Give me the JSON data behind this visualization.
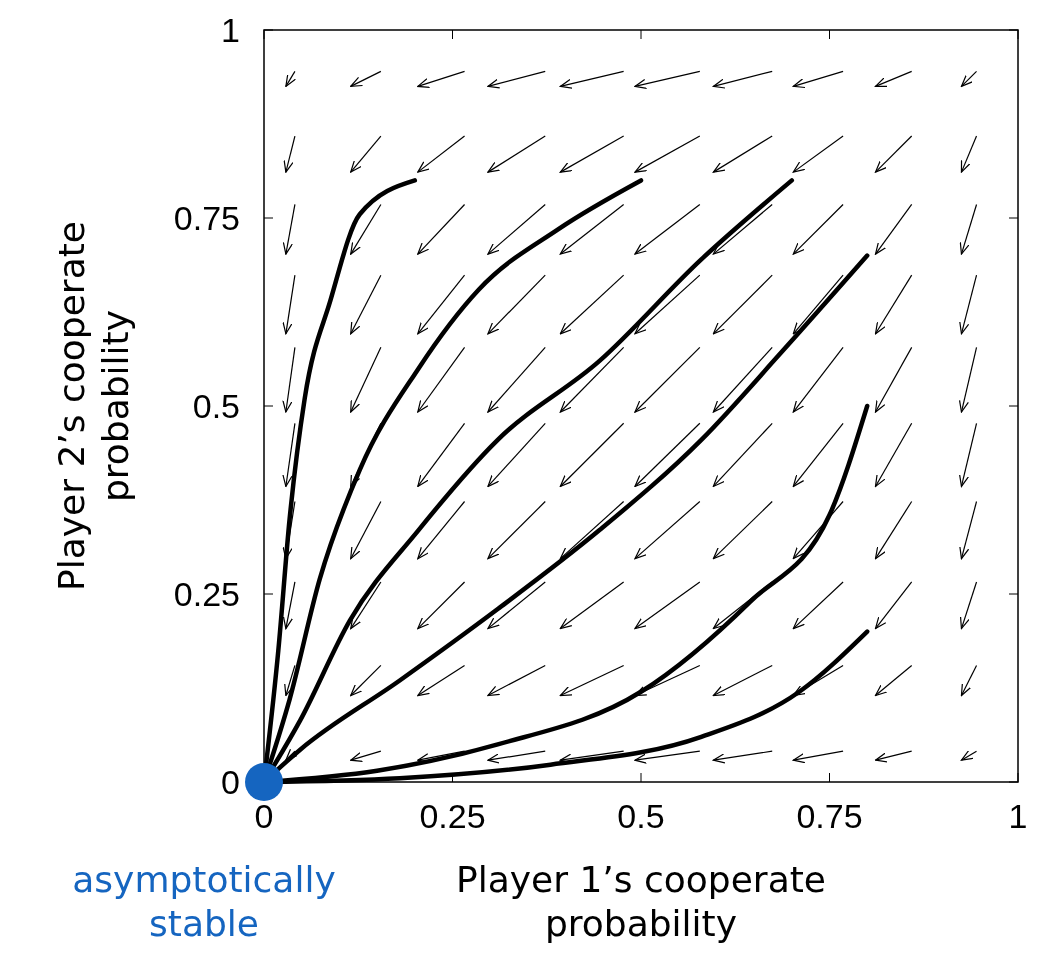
{
  "chart_data": {
    "type": "line",
    "xlabel": "Player 1’s cooperate probability",
    "ylabel": "Player 2’s cooperate probability",
    "xlim": [
      0,
      1
    ],
    "ylim": [
      0,
      1
    ],
    "xticks": [
      0,
      0.25,
      0.5,
      0.75,
      1
    ],
    "yticks": [
      0,
      0.25,
      0.5,
      0.75,
      1
    ],
    "annotations": [
      {
        "text": "asymptotically stable",
        "x": 0,
        "y": 0
      }
    ],
    "series": [
      {
        "color": "#000000",
        "x": [
          0.041,
          0.029
        ],
        "values": [
          0.041,
          0.029
        ]
      },
      {
        "color": "#000000",
        "x": [
          0.155,
          0.115
        ],
        "values": [
          0.041,
          0.029
        ]
      },
      {
        "color": "#000000",
        "x": [
          0.266,
          0.204
        ],
        "values": [
          0.041,
          0.029
        ]
      },
      {
        "color": "#000000",
        "x": [
          0.373,
          0.297
        ],
        "values": [
          0.041,
          0.029
        ]
      },
      {
        "color": "#000000",
        "x": [
          0.477,
          0.393
        ],
        "values": [
          0.041,
          0.029
        ]
      },
      {
        "color": "#000000",
        "x": [
          0.578,
          0.492
        ],
        "values": [
          0.041,
          0.029
        ]
      },
      {
        "color": "#000000",
        "x": [
          0.674,
          0.596
        ],
        "values": [
          0.041,
          0.029
        ]
      },
      {
        "color": "#000000",
        "x": [
          0.768,
          0.702
        ],
        "values": [
          0.041,
          0.029
        ]
      },
      {
        "color": "#000000",
        "x": [
          0.859,
          0.811
        ],
        "values": [
          0.041,
          0.029
        ]
      },
      {
        "color": "#000000",
        "x": [
          0.945,
          0.925
        ],
        "values": [
          0.041,
          0.029
        ]
      },
      {
        "color": "#000000",
        "x": [
          0.041,
          0.029
        ],
        "values": [
          0.155,
          0.115
        ]
      },
      {
        "color": "#000000",
        "x": [
          0.155,
          0.115
        ],
        "values": [
          0.155,
          0.115
        ]
      },
      {
        "color": "#000000",
        "x": [
          0.266,
          0.204
        ],
        "values": [
          0.155,
          0.115
        ]
      },
      {
        "color": "#000000",
        "x": [
          0.373,
          0.297
        ],
        "values": [
          0.155,
          0.115
        ]
      },
      {
        "color": "#000000",
        "x": [
          0.477,
          0.393
        ],
        "values": [
          0.155,
          0.115
        ]
      },
      {
        "color": "#000000",
        "x": [
          0.578,
          0.492
        ],
        "values": [
          0.155,
          0.115
        ]
      },
      {
        "color": "#000000",
        "x": [
          0.674,
          0.596
        ],
        "values": [
          0.155,
          0.115
        ]
      },
      {
        "color": "#000000",
        "x": [
          0.768,
          0.702
        ],
        "values": [
          0.155,
          0.115
        ]
      },
      {
        "color": "#000000",
        "x": [
          0.859,
          0.811
        ],
        "values": [
          0.155,
          0.115
        ]
      },
      {
        "color": "#000000",
        "x": [
          0.945,
          0.925
        ],
        "values": [
          0.155,
          0.115
        ]
      },
      {
        "color": "#000000",
        "x": [
          0.041,
          0.029
        ],
        "values": [
          0.266,
          0.204
        ]
      },
      {
        "color": "#000000",
        "x": [
          0.155,
          0.115
        ],
        "values": [
          0.266,
          0.204
        ]
      },
      {
        "color": "#000000",
        "x": [
          0.266,
          0.204
        ],
        "values": [
          0.266,
          0.204
        ]
      },
      {
        "color": "#000000",
        "x": [
          0.373,
          0.297
        ],
        "values": [
          0.266,
          0.204
        ]
      },
      {
        "color": "#000000",
        "x": [
          0.477,
          0.393
        ],
        "values": [
          0.266,
          0.204
        ]
      },
      {
        "color": "#000000",
        "x": [
          0.578,
          0.492
        ],
        "values": [
          0.266,
          0.204
        ]
      },
      {
        "color": "#000000",
        "x": [
          0.674,
          0.596
        ],
        "values": [
          0.266,
          0.204
        ]
      },
      {
        "color": "#000000",
        "x": [
          0.768,
          0.702
        ],
        "values": [
          0.266,
          0.204
        ]
      },
      {
        "color": "#000000",
        "x": [
          0.859,
          0.811
        ],
        "values": [
          0.266,
          0.204
        ]
      },
      {
        "color": "#000000",
        "x": [
          0.945,
          0.925
        ],
        "values": [
          0.266,
          0.204
        ]
      },
      {
        "color": "#000000",
        "x": [
          0.041,
          0.029
        ],
        "values": [
          0.373,
          0.297
        ]
      },
      {
        "color": "#000000",
        "x": [
          0.155,
          0.115
        ],
        "values": [
          0.373,
          0.297
        ]
      },
      {
        "color": "#000000",
        "x": [
          0.266,
          0.204
        ],
        "values": [
          0.373,
          0.297
        ]
      },
      {
        "color": "#000000",
        "x": [
          0.373,
          0.297
        ],
        "values": [
          0.373,
          0.297
        ]
      },
      {
        "color": "#000000",
        "x": [
          0.477,
          0.393
        ],
        "values": [
          0.373,
          0.297
        ]
      },
      {
        "color": "#000000",
        "x": [
          0.578,
          0.492
        ],
        "values": [
          0.373,
          0.297
        ]
      },
      {
        "color": "#000000",
        "x": [
          0.674,
          0.596
        ],
        "values": [
          0.373,
          0.297
        ]
      },
      {
        "color": "#000000",
        "x": [
          0.768,
          0.702
        ],
        "values": [
          0.373,
          0.297
        ]
      },
      {
        "color": "#000000",
        "x": [
          0.859,
          0.811
        ],
        "values": [
          0.373,
          0.297
        ]
      },
      {
        "color": "#000000",
        "x": [
          0.945,
          0.925
        ],
        "values": [
          0.373,
          0.297
        ]
      },
      {
        "color": "#000000",
        "x": [
          0.041,
          0.029
        ],
        "values": [
          0.477,
          0.393
        ]
      },
      {
        "color": "#000000",
        "x": [
          0.155,
          0.115
        ],
        "values": [
          0.477,
          0.393
        ]
      },
      {
        "color": "#000000",
        "x": [
          0.266,
          0.204
        ],
        "values": [
          0.477,
          0.393
        ]
      },
      {
        "color": "#000000",
        "x": [
          0.373,
          0.297
        ],
        "values": [
          0.477,
          0.393
        ]
      },
      {
        "color": "#000000",
        "x": [
          0.477,
          0.393
        ],
        "values": [
          0.477,
          0.393
        ]
      },
      {
        "color": "#000000",
        "x": [
          0.578,
          0.492
        ],
        "values": [
          0.477,
          0.393
        ]
      },
      {
        "color": "#000000",
        "x": [
          0.674,
          0.596
        ],
        "values": [
          0.477,
          0.393
        ]
      },
      {
        "color": "#000000",
        "x": [
          0.768,
          0.702
        ],
        "values": [
          0.477,
          0.393
        ]
      },
      {
        "color": "#000000",
        "x": [
          0.859,
          0.811
        ],
        "values": [
          0.477,
          0.393
        ]
      },
      {
        "color": "#000000",
        "x": [
          0.945,
          0.925
        ],
        "values": [
          0.477,
          0.393
        ]
      },
      {
        "color": "#000000",
        "x": [
          0.041,
          0.029
        ],
        "values": [
          0.578,
          0.492
        ]
      },
      {
        "color": "#000000",
        "x": [
          0.155,
          0.115
        ],
        "values": [
          0.578,
          0.492
        ]
      },
      {
        "color": "#000000",
        "x": [
          0.266,
          0.204
        ],
        "values": [
          0.578,
          0.492
        ]
      },
      {
        "color": "#000000",
        "x": [
          0.373,
          0.297
        ],
        "values": [
          0.578,
          0.492
        ]
      },
      {
        "color": "#000000",
        "x": [
          0.477,
          0.393
        ],
        "values": [
          0.578,
          0.492
        ]
      },
      {
        "color": "#000000",
        "x": [
          0.578,
          0.492
        ],
        "values": [
          0.578,
          0.492
        ]
      },
      {
        "color": "#000000",
        "x": [
          0.674,
          0.596
        ],
        "values": [
          0.578,
          0.492
        ]
      },
      {
        "color": "#000000",
        "x": [
          0.768,
          0.702
        ],
        "values": [
          0.578,
          0.492
        ]
      },
      {
        "color": "#000000",
        "x": [
          0.859,
          0.811
        ],
        "values": [
          0.578,
          0.492
        ]
      },
      {
        "color": "#000000",
        "x": [
          0.945,
          0.925
        ],
        "values": [
          0.578,
          0.492
        ]
      },
      {
        "color": "#000000",
        "x": [
          0.041,
          0.029
        ],
        "values": [
          0.674,
          0.596
        ]
      },
      {
        "color": "#000000",
        "x": [
          0.155,
          0.115
        ],
        "values": [
          0.674,
          0.596
        ]
      },
      {
        "color": "#000000",
        "x": [
          0.266,
          0.204
        ],
        "values": [
          0.674,
          0.596
        ]
      },
      {
        "color": "#000000",
        "x": [
          0.373,
          0.297
        ],
        "values": [
          0.674,
          0.596
        ]
      },
      {
        "color": "#000000",
        "x": [
          0.477,
          0.393
        ],
        "values": [
          0.674,
          0.596
        ]
      },
      {
        "color": "#000000",
        "x": [
          0.578,
          0.492
        ],
        "values": [
          0.674,
          0.596
        ]
      },
      {
        "color": "#000000",
        "x": [
          0.674,
          0.596
        ],
        "values": [
          0.674,
          0.596
        ]
      },
      {
        "color": "#000000",
        "x": [
          0.768,
          0.702
        ],
        "values": [
          0.674,
          0.596
        ]
      },
      {
        "color": "#000000",
        "x": [
          0.859,
          0.811
        ],
        "values": [
          0.674,
          0.596
        ]
      },
      {
        "color": "#000000",
        "x": [
          0.945,
          0.925
        ],
        "values": [
          0.674,
          0.596
        ]
      },
      {
        "color": "#000000",
        "x": [
          0.041,
          0.029
        ],
        "values": [
          0.768,
          0.702
        ]
      },
      {
        "color": "#000000",
        "x": [
          0.155,
          0.115
        ],
        "values": [
          0.768,
          0.702
        ]
      },
      {
        "color": "#000000",
        "x": [
          0.266,
          0.204
        ],
        "values": [
          0.768,
          0.702
        ]
      },
      {
        "color": "#000000",
        "x": [
          0.373,
          0.297
        ],
        "values": [
          0.768,
          0.702
        ]
      },
      {
        "color": "#000000",
        "x": [
          0.477,
          0.393
        ],
        "values": [
          0.768,
          0.702
        ]
      },
      {
        "color": "#000000",
        "x": [
          0.578,
          0.492
        ],
        "values": [
          0.768,
          0.702
        ]
      },
      {
        "color": "#000000",
        "x": [
          0.674,
          0.596
        ],
        "values": [
          0.768,
          0.702
        ]
      },
      {
        "color": "#000000",
        "x": [
          0.768,
          0.702
        ],
        "values": [
          0.768,
          0.702
        ]
      },
      {
        "color": "#000000",
        "x": [
          0.859,
          0.811
        ],
        "values": [
          0.768,
          0.702
        ]
      },
      {
        "color": "#000000",
        "x": [
          0.945,
          0.925
        ],
        "values": [
          0.768,
          0.702
        ]
      },
      {
        "color": "#000000",
        "x": [
          0.041,
          0.029
        ],
        "values": [
          0.859,
          0.811
        ]
      },
      {
        "color": "#000000",
        "x": [
          0.155,
          0.115
        ],
        "values": [
          0.859,
          0.811
        ]
      },
      {
        "color": "#000000",
        "x": [
          0.266,
          0.204
        ],
        "values": [
          0.859,
          0.811
        ]
      },
      {
        "color": "#000000",
        "x": [
          0.373,
          0.297
        ],
        "values": [
          0.859,
          0.811
        ]
      },
      {
        "color": "#000000",
        "x": [
          0.477,
          0.393
        ],
        "values": [
          0.859,
          0.811
        ]
      },
      {
        "color": "#000000",
        "x": [
          0.578,
          0.492
        ],
        "values": [
          0.859,
          0.811
        ]
      },
      {
        "color": "#000000",
        "x": [
          0.674,
          0.596
        ],
        "values": [
          0.859,
          0.811
        ]
      },
      {
        "color": "#000000",
        "x": [
          0.768,
          0.702
        ],
        "values": [
          0.859,
          0.811
        ]
      },
      {
        "color": "#000000",
        "x": [
          0.859,
          0.811
        ],
        "values": [
          0.859,
          0.811
        ]
      },
      {
        "color": "#000000",
        "x": [
          0.945,
          0.925
        ],
        "values": [
          0.859,
          0.811
        ]
      },
      {
        "color": "#000000",
        "x": [
          0.041,
          0.029
        ],
        "values": [
          0.945,
          0.925
        ]
      },
      {
        "color": "#000000",
        "x": [
          0.155,
          0.115
        ],
        "values": [
          0.945,
          0.925
        ]
      },
      {
        "color": "#000000",
        "x": [
          0.266,
          0.204
        ],
        "values": [
          0.945,
          0.925
        ]
      },
      {
        "color": "#000000",
        "x": [
          0.373,
          0.297
        ],
        "values": [
          0.945,
          0.925
        ]
      },
      {
        "color": "#000000",
        "x": [
          0.477,
          0.393
        ],
        "values": [
          0.945,
          0.925
        ]
      },
      {
        "color": "#000000",
        "x": [
          0.578,
          0.492
        ],
        "values": [
          0.945,
          0.925
        ]
      },
      {
        "color": "#000000",
        "x": [
          0.674,
          0.596
        ],
        "values": [
          0.945,
          0.925
        ]
      },
      {
        "color": "#000000",
        "x": [
          0.768,
          0.702
        ],
        "values": [
          0.945,
          0.925
        ]
      },
      {
        "color": "#000000",
        "x": [
          0.859,
          0.811
        ],
        "values": [
          0.945,
          0.925
        ]
      },
      {
        "color": "#000000",
        "x": [
          0.945,
          0.925
        ],
        "values": [
          0.945,
          0.925
        ]
      },
      {
        "color": "#000000",
        "x": [
          0.2,
          0.127,
          0.088,
          0.054,
          0.034,
          0.019,
          0
        ],
        "values": [
          0.8,
          0.755,
          0.64,
          0.51,
          0.35,
          0.175,
          0
        ]
      },
      {
        "color": "#000000",
        "x": [
          0.5,
          0.39,
          0.285,
          0.205,
          0.127,
          0.074,
          0.034,
          0
        ],
        "values": [
          0.8,
          0.735,
          0.655,
          0.55,
          0.415,
          0.27,
          0.11,
          0
        ]
      },
      {
        "color": "#000000",
        "x": [
          0.7,
          0.58,
          0.445,
          0.31,
          0.205,
          0.114,
          0.048,
          0
        ],
        "values": [
          0.8,
          0.695,
          0.56,
          0.455,
          0.335,
          0.215,
          0.082,
          0
        ]
      },
      {
        "color": "#000000",
        "x": [
          0.8,
          0.685,
          0.58,
          0.445,
          0.31,
          0.18,
          0.048,
          0
        ],
        "values": [
          0.7,
          0.57,
          0.455,
          0.335,
          0.23,
          0.135,
          0.043,
          0
        ]
      },
      {
        "color": "#000000",
        "x": [
          0.8,
          0.75,
          0.645,
          0.5,
          0.31,
          0.15,
          0
        ],
        "values": [
          0.5,
          0.355,
          0.24,
          0.12,
          0.05,
          0.015,
          0
        ]
      },
      {
        "color": "#000000",
        "x": [
          0.8,
          0.71,
          0.58,
          0.38,
          0.18,
          0
        ],
        "values": [
          0.2,
          0.12,
          0.06,
          0.023,
          0.005,
          0
        ]
      },
      {
        "type": "scatter",
        "color": "#1565c0",
        "x": [
          0
        ],
        "values": [
          0
        ]
      }
    ]
  }
}
